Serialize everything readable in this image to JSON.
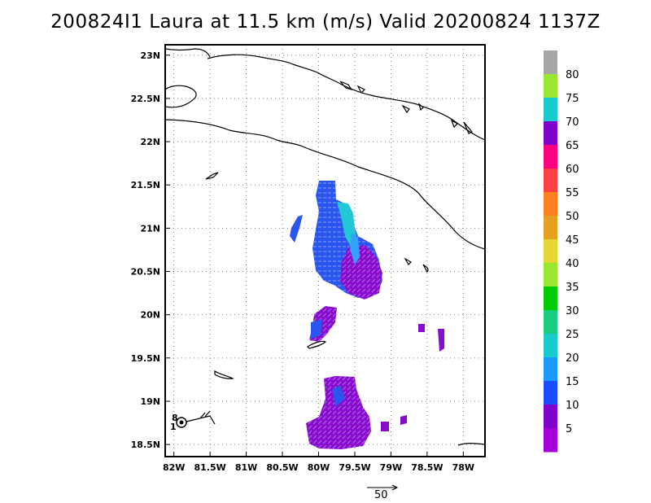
{
  "title": "200824I1 Laura at 11.5 km (m/s) Valid 20200824 1137Z",
  "map": {
    "lat_labels": [
      {
        "lat": 23.0,
        "label": "23N"
      },
      {
        "lat": 22.5,
        "label": "22.5N"
      },
      {
        "lat": 22.0,
        "label": "22N"
      },
      {
        "lat": 21.5,
        "label": "21.5N"
      },
      {
        "lat": 21.0,
        "label": "21N"
      },
      {
        "lat": 20.5,
        "label": "20.5N"
      },
      {
        "lat": 20.0,
        "label": "20N"
      },
      {
        "lat": 19.5,
        "label": "19.5N"
      },
      {
        "lat": 19.0,
        "label": "19N"
      },
      {
        "lat": 18.5,
        "label": "18.5N"
      }
    ],
    "lon_labels": [
      {
        "lon": -82.0,
        "label": "82W"
      },
      {
        "lon": -81.5,
        "label": "81.5W"
      },
      {
        "lon": -81.0,
        "label": "81W"
      },
      {
        "lon": -80.5,
        "label": "80.5W"
      },
      {
        "lon": -80.0,
        "label": "80W"
      },
      {
        "lon": -79.5,
        "label": "79.5W"
      },
      {
        "lon": -79.0,
        "label": "79W"
      },
      {
        "lon": -78.5,
        "label": "78.5W"
      },
      {
        "lon": -78.0,
        "label": "78W"
      }
    ],
    "colorbar": {
      "labels": [
        "80",
        "75",
        "70",
        "65",
        "60",
        "55",
        "50",
        "45",
        "40",
        "35",
        "30",
        "25",
        "20",
        "15",
        "10",
        "5"
      ],
      "colors": [
        "#a6a6a6",
        "#99e633",
        "#19cccc",
        "#8000cc",
        "#ff0080",
        "#ff4040",
        "#ff8020",
        "#e6a020",
        "#e6d633",
        "#99e633",
        "#00cc00",
        "#19cc80",
        "#19cccc",
        "#1a99ff",
        "#1a4dff",
        "#8000cc",
        "#a600d9"
      ]
    },
    "vector_reference": {
      "label": "50"
    },
    "storm_symbol": {
      "label_top": "8",
      "label_bottom": "1"
    }
  }
}
